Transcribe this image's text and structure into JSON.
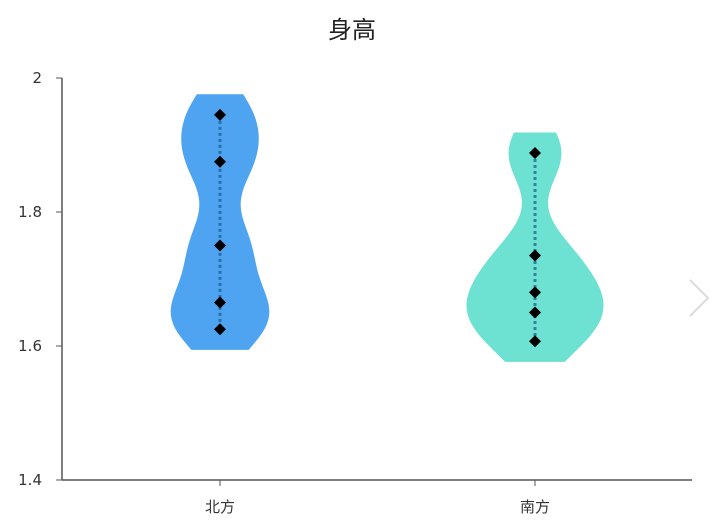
{
  "chart_data": {
    "type": "violin",
    "title": "身高",
    "xlabel": "",
    "ylabel": "",
    "ylim": [
      1.4,
      2.0
    ],
    "yticks": [
      "1.4",
      "1.6",
      "1.8",
      "2"
    ],
    "grid": false,
    "categories": [
      "北方",
      "南方"
    ],
    "series": [
      {
        "category": "北方",
        "color": "#4fa4f1",
        "values": [
          1.945,
          1.875,
          1.75,
          1.665,
          1.625
        ]
      },
      {
        "category": "南方",
        "color": "#6de1d2",
        "values": [
          1.888,
          1.735,
          1.68,
          1.65,
          1.607
        ]
      }
    ]
  },
  "nav": {
    "next_icon": "chevron-right-icon"
  }
}
